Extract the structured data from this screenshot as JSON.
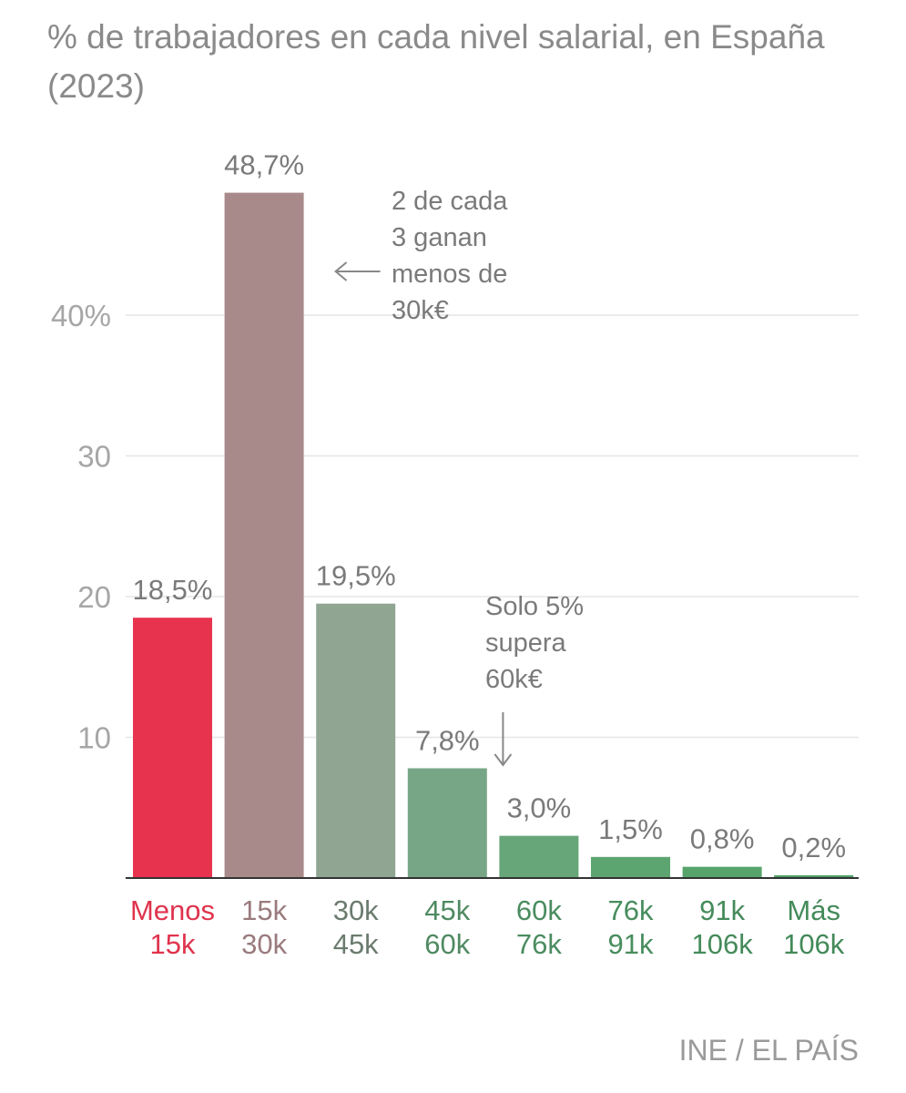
{
  "chart_data": {
    "type": "bar",
    "title": "% de trabajadores en cada nivel salarial, en España (2023)",
    "categories": [
      [
        "Menos",
        "15k"
      ],
      [
        "15k",
        "30k"
      ],
      [
        "30k",
        "45k"
      ],
      [
        "45k",
        "60k"
      ],
      [
        "60k",
        "76k"
      ],
      [
        "76k",
        "91k"
      ],
      [
        "91k",
        "106k"
      ],
      [
        "Más",
        "106k"
      ]
    ],
    "values": [
      18.5,
      48.7,
      19.5,
      7.8,
      3.0,
      1.5,
      0.8,
      0.2
    ],
    "data_labels": [
      "18,5%",
      "48,7%",
      "19,5%",
      "7,8%",
      "3,0%",
      "1,5%",
      "0,8%",
      "0,2%"
    ],
    "bar_colors": [
      "#e8334f",
      "#a98a8b",
      "#90a693",
      "#77a686",
      "#66a678",
      "#5da570",
      "#56a46c",
      "#52a168"
    ],
    "label_colors": [
      "#e0334d",
      "#9a7b7d",
      "#6b7c6f",
      "#4f8a62",
      "#4b8c60",
      "#478d5d",
      "#458b5b",
      "#438a59"
    ],
    "yticks": [
      {
        "value": 10,
        "label": "10"
      },
      {
        "value": 20,
        "label": "20"
      },
      {
        "value": 30,
        "label": "30"
      },
      {
        "value": 40,
        "label": "40%"
      }
    ],
    "ylim": [
      0,
      50
    ],
    "grid": true,
    "annotations": [
      {
        "lines": [
          "2 de cada",
          "3 ganan",
          "menos de",
          "30k€"
        ],
        "arrow": "left",
        "target_category": 1
      },
      {
        "lines": [
          "Solo 5%",
          "supera",
          "60k€"
        ],
        "arrow": "down",
        "target_category": 4
      }
    ]
  },
  "source": "INE / EL PAÍS"
}
